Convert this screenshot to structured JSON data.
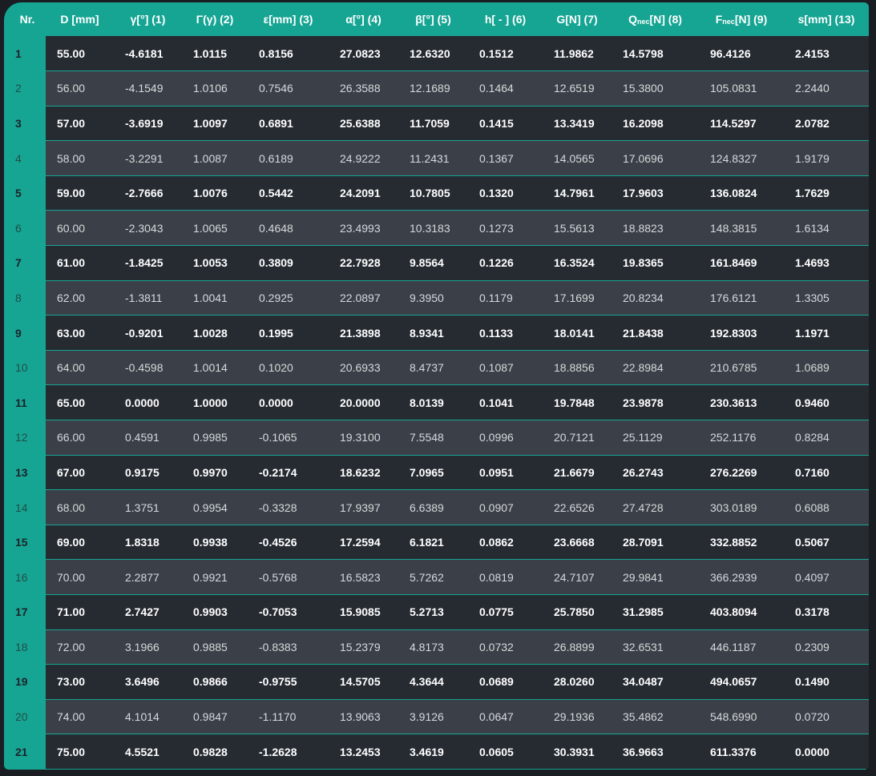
{
  "table": {
    "headers": [
      {
        "id": "nr",
        "label": "Nr."
      },
      {
        "id": "d",
        "label": "D [mm]"
      },
      {
        "id": "gamma",
        "label": "γ[°] (1)"
      },
      {
        "id": "Gamma",
        "label": "Γ(γ) (2)"
      },
      {
        "id": "eps",
        "label": "ε[mm] (3)"
      },
      {
        "id": "alpha",
        "label": "α[°] (4)"
      },
      {
        "id": "beta",
        "label": "β[°] (5)"
      },
      {
        "id": "h",
        "label": "h[ - ] (6)"
      },
      {
        "id": "g",
        "label": "G[N] (7)"
      },
      {
        "id": "q",
        "label_main": "Q",
        "label_sub": "nec",
        "label_rest": "[N] (8)"
      },
      {
        "id": "f",
        "label_main": "F",
        "label_sub": "nec",
        "label_rest": "[N] (9)"
      },
      {
        "id": "s",
        "label": "s[mm] (13)"
      }
    ],
    "rows": [
      [
        "1",
        "55.00",
        "-4.6181",
        "1.0115",
        "0.8156",
        "27.0823",
        "12.6320",
        "0.1512",
        "11.9862",
        "14.5798",
        "96.4126",
        "2.4153"
      ],
      [
        "2",
        "56.00",
        "-4.1549",
        "1.0106",
        "0.7546",
        "26.3588",
        "12.1689",
        "0.1464",
        "12.6519",
        "15.3800",
        "105.0831",
        "2.2440"
      ],
      [
        "3",
        "57.00",
        "-3.6919",
        "1.0097",
        "0.6891",
        "25.6388",
        "11.7059",
        "0.1415",
        "13.3419",
        "16.2098",
        "114.5297",
        "2.0782"
      ],
      [
        "4",
        "58.00",
        "-3.2291",
        "1.0087",
        "0.6189",
        "24.9222",
        "11.2431",
        "0.1367",
        "14.0565",
        "17.0696",
        "124.8327",
        "1.9179"
      ],
      [
        "5",
        "59.00",
        "-2.7666",
        "1.0076",
        "0.5442",
        "24.2091",
        "10.7805",
        "0.1320",
        "14.7961",
        "17.9603",
        "136.0824",
        "1.7629"
      ],
      [
        "6",
        "60.00",
        "-2.3043",
        "1.0065",
        "0.4648",
        "23.4993",
        "10.3183",
        "0.1273",
        "15.5613",
        "18.8823",
        "148.3815",
        "1.6134"
      ],
      [
        "7",
        "61.00",
        "-1.8425",
        "1.0053",
        "0.3809",
        "22.7928",
        "9.8564",
        "0.1226",
        "16.3524",
        "19.8365",
        "161.8469",
        "1.4693"
      ],
      [
        "8",
        "62.00",
        "-1.3811",
        "1.0041",
        "0.2925",
        "22.0897",
        "9.3950",
        "0.1179",
        "17.1699",
        "20.8234",
        "176.6121",
        "1.3305"
      ],
      [
        "9",
        "63.00",
        "-0.9201",
        "1.0028",
        "0.1995",
        "21.3898",
        "8.9341",
        "0.1133",
        "18.0141",
        "21.8438",
        "192.8303",
        "1.1971"
      ],
      [
        "10",
        "64.00",
        "-0.4598",
        "1.0014",
        "0.1020",
        "20.6933",
        "8.4737",
        "0.1087",
        "18.8856",
        "22.8984",
        "210.6785",
        "1.0689"
      ],
      [
        "11",
        "65.00",
        "0.0000",
        "1.0000",
        "0.0000",
        "20.0000",
        "8.0139",
        "0.1041",
        "19.7848",
        "23.9878",
        "230.3613",
        "0.9460"
      ],
      [
        "12",
        "66.00",
        "0.4591",
        "0.9985",
        "-0.1065",
        "19.3100",
        "7.5548",
        "0.0996",
        "20.7121",
        "25.1129",
        "252.1176",
        "0.8284"
      ],
      [
        "13",
        "67.00",
        "0.9175",
        "0.9970",
        "-0.2174",
        "18.6232",
        "7.0965",
        "0.0951",
        "21.6679",
        "26.2743",
        "276.2269",
        "0.7160"
      ],
      [
        "14",
        "68.00",
        "1.3751",
        "0.9954",
        "-0.3328",
        "17.9397",
        "6.6389",
        "0.0907",
        "22.6526",
        "27.4728",
        "303.0189",
        "0.6088"
      ],
      [
        "15",
        "69.00",
        "1.8318",
        "0.9938",
        "-0.4526",
        "17.2594",
        "6.1821",
        "0.0862",
        "23.6668",
        "28.7091",
        "332.8852",
        "0.5067"
      ],
      [
        "16",
        "70.00",
        "2.2877",
        "0.9921",
        "-0.5768",
        "16.5823",
        "5.7262",
        "0.0819",
        "24.7107",
        "29.9841",
        "366.2939",
        "0.4097"
      ],
      [
        "17",
        "71.00",
        "2.7427",
        "0.9903",
        "-0.7053",
        "15.9085",
        "5.2713",
        "0.0775",
        "25.7850",
        "31.2985",
        "403.8094",
        "0.3178"
      ],
      [
        "18",
        "72.00",
        "3.1966",
        "0.9885",
        "-0.8383",
        "15.2379",
        "4.8173",
        "0.0732",
        "26.8899",
        "32.6531",
        "446.1187",
        "0.2309"
      ],
      [
        "19",
        "73.00",
        "3.6496",
        "0.9866",
        "-0.9755",
        "14.5705",
        "4.3644",
        "0.0689",
        "28.0260",
        "34.0487",
        "494.0657",
        "0.1490"
      ],
      [
        "20",
        "74.00",
        "4.1014",
        "0.9847",
        "-1.1170",
        "13.9063",
        "3.9126",
        "0.0647",
        "29.1936",
        "35.4862",
        "548.6990",
        "0.0720"
      ],
      [
        "21",
        "75.00",
        "4.5521",
        "0.9828",
        "-1.2628",
        "13.2453",
        "3.4619",
        "0.0605",
        "30.3931",
        "36.9663",
        "611.3376",
        "0.0000"
      ]
    ]
  },
  "colors": {
    "accent": "#17a593",
    "row_dark": "#262b32",
    "row_light": "#3b4048",
    "background": "#1a1e23"
  }
}
